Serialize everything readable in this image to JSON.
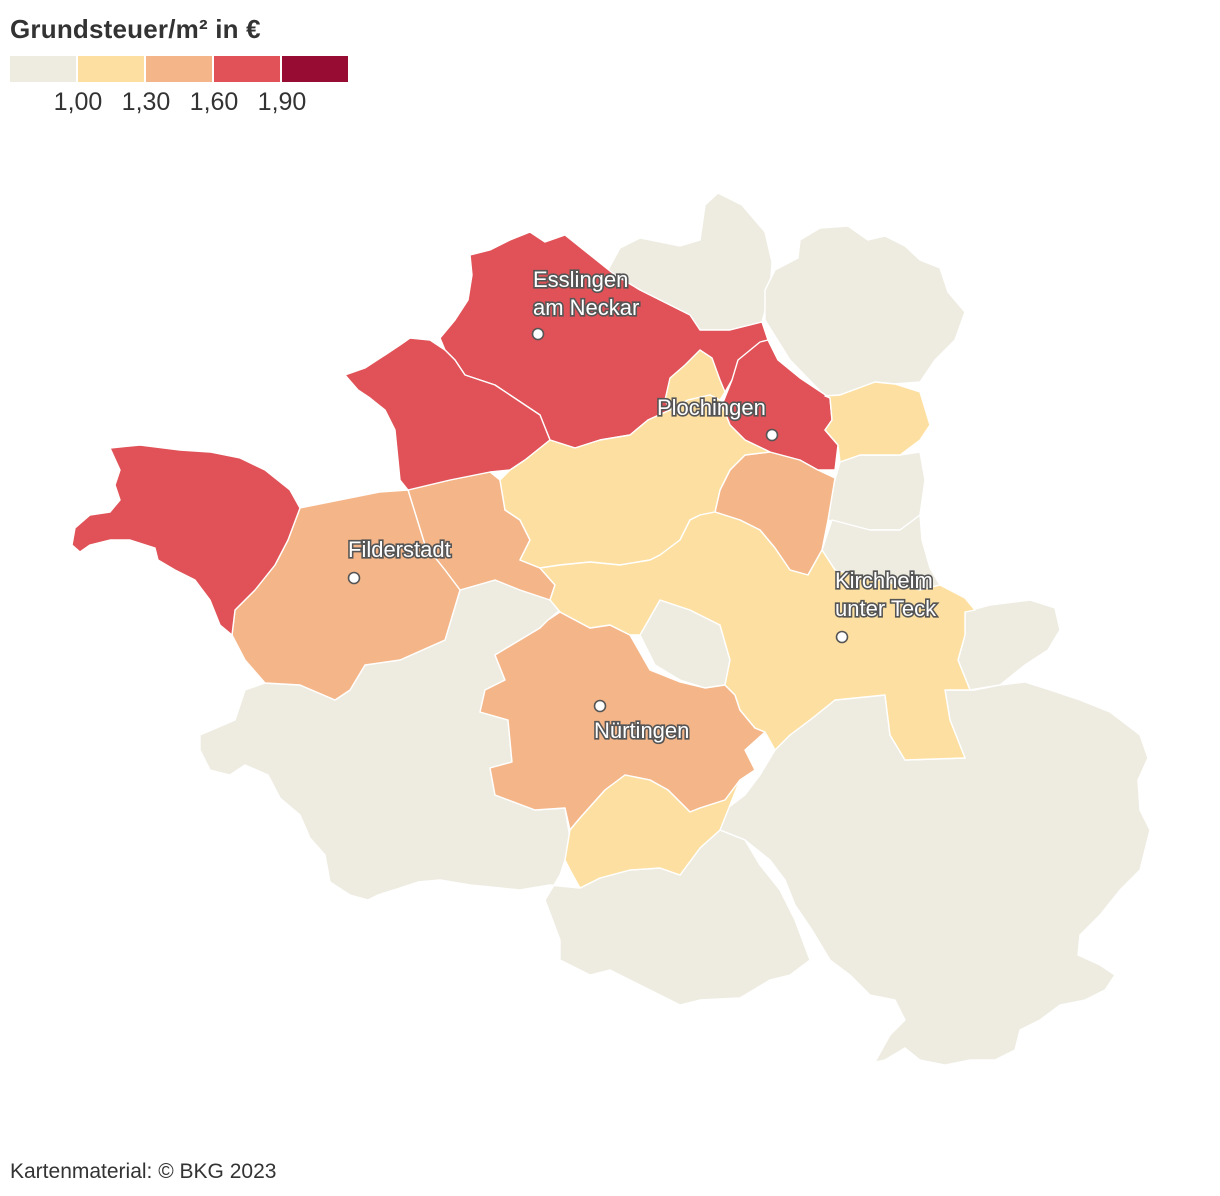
{
  "title": "Grundsteuer/m² in €",
  "legend": {
    "colors": [
      "#eeece1",
      "#fde0a1",
      "#f4b688",
      "#e05257",
      "#960c32"
    ],
    "ticks": [
      "1,00",
      "1,30",
      "1,60",
      "1,90"
    ]
  },
  "map": {
    "value_classes": [
      "1,00",
      "1,30",
      "1,60",
      "1,90"
    ],
    "cities": [
      {
        "lines": [
          "Esslingen",
          "am Neckar"
        ]
      },
      {
        "lines": [
          "Plochingen"
        ]
      },
      {
        "lines": [
          "Filderstadt"
        ]
      },
      {
        "lines": [
          "Kirchheim",
          "unter Teck"
        ]
      },
      {
        "lines": [
          "Nürtingen"
        ]
      }
    ]
  },
  "source": "Kartenmaterial: © BKG 2023"
}
